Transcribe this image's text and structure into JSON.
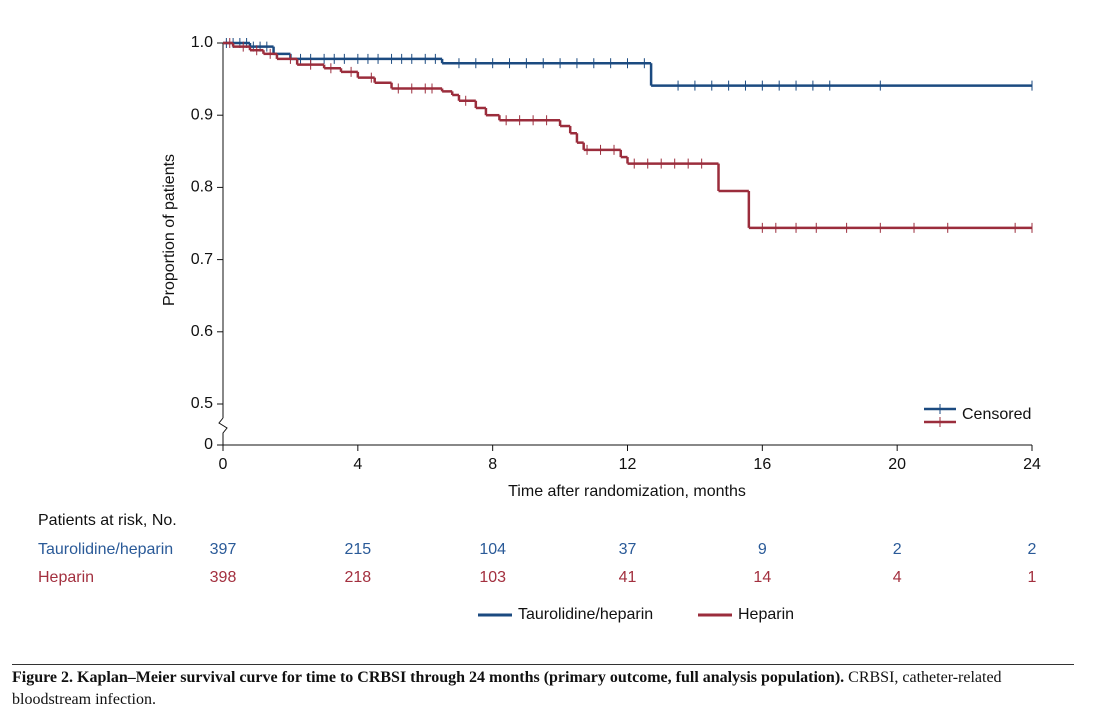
{
  "chart_data": {
    "type": "km",
    "xlabel": "Time after randomization, months",
    "ylabel": "Proportion of patients",
    "xlim": [
      0,
      24
    ],
    "xticks": [
      0,
      4,
      8,
      12,
      16,
      20,
      24
    ],
    "ylim": [
      0.5,
      1.0
    ],
    "yticks": [
      {
        "value": 1.0,
        "label": "1.0"
      },
      0.9,
      0.8,
      0.7,
      0.6,
      0.5,
      0
    ],
    "axis_break": true,
    "censored_label": "Censored",
    "series": [
      {
        "name": "Taurolidine/heparin",
        "color": "#1b4a80",
        "x": [
          0,
          0.8,
          1.5,
          2.0,
          6.5,
          12.7,
          24
        ],
        "values": [
          1.0,
          0.995,
          0.985,
          0.978,
          0.972,
          0.941,
          0.941
        ],
        "censored": [
          0.1,
          0.3,
          0.5,
          0.7,
          0.9,
          1.1,
          1.3,
          2.3,
          2.6,
          3.0,
          3.3,
          3.6,
          4.0,
          4.3,
          4.6,
          5.0,
          5.3,
          5.6,
          6.0,
          6.3,
          7.0,
          7.5,
          8.0,
          8.5,
          9.0,
          9.5,
          10.0,
          10.5,
          11.0,
          11.5,
          12.0,
          12.5,
          13.5,
          14.0,
          14.5,
          15.0,
          15.5,
          16.0,
          16.5,
          17.0,
          17.5,
          18.0,
          19.5,
          24
        ]
      },
      {
        "name": "Heparin",
        "color": "#9b2d3c",
        "x": [
          0,
          0.3,
          0.8,
          1.2,
          1.6,
          2.2,
          3.0,
          3.5,
          4.0,
          4.5,
          5.0,
          6.5,
          6.8,
          7.0,
          7.5,
          7.8,
          8.2,
          10.0,
          10.3,
          10.5,
          10.7,
          11.8,
          12.0,
          14.7,
          15.6,
          24
        ],
        "values": [
          1.0,
          0.995,
          0.99,
          0.985,
          0.978,
          0.97,
          0.965,
          0.96,
          0.952,
          0.945,
          0.937,
          0.933,
          0.928,
          0.92,
          0.91,
          0.9,
          0.893,
          0.885,
          0.875,
          0.862,
          0.852,
          0.842,
          0.833,
          0.795,
          0.744,
          0.744
        ],
        "censored": [
          0.2,
          0.6,
          1.0,
          1.4,
          2.0,
          2.6,
          3.2,
          3.8,
          4.4,
          5.2,
          5.6,
          6.0,
          6.2,
          7.2,
          8.4,
          8.8,
          9.2,
          9.6,
          10.8,
          11.2,
          11.6,
          12.2,
          12.6,
          13.0,
          13.4,
          13.8,
          14.2,
          16.0,
          16.4,
          17.0,
          17.6,
          18.5,
          19.5,
          20.5,
          21.5,
          23.5,
          24
        ]
      }
    ],
    "risk_table": {
      "title": "Patients at risk, No.",
      "rows": [
        {
          "name": "Taurolidine/heparin",
          "color": "#2a5a98",
          "values": [
            397,
            215,
            104,
            37,
            9,
            2,
            2
          ]
        },
        {
          "name": "Heparin",
          "color": "#a3303f",
          "values": [
            398,
            218,
            103,
            41,
            14,
            4,
            1
          ]
        }
      ]
    }
  },
  "caption": {
    "label": "Figure 2. Kaplan–Meier survival curve for time to CRBSI through 24 months (primary outcome, full analysis population).",
    "text": "CRBSI, catheter-related bloodstream infection."
  }
}
